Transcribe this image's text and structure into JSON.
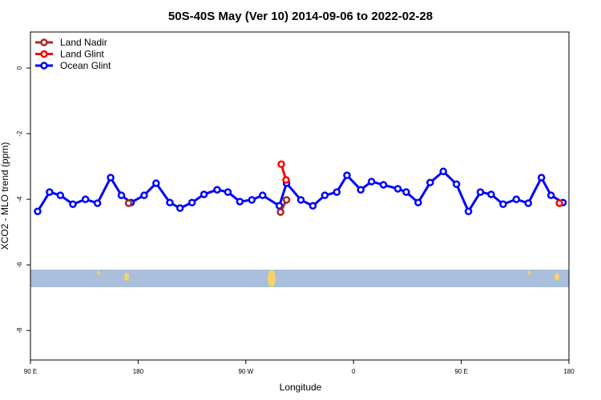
{
  "chart_data": {
    "type": "line",
    "title": "50S-40S May (Ver 10)   2014-09-06 to 2022-02-28",
    "x_label": "Longitude",
    "y_label": "XCO2 - MLO trend (ppm)",
    "xlim": [
      90,
      540
    ],
    "ylim": [
      -8.9,
      1.1
    ],
    "xticks": [
      {
        "value": 90,
        "label": "90 E"
      },
      {
        "value": 180,
        "label": "180"
      },
      {
        "value": 270,
        "label": "90 W"
      },
      {
        "value": 360,
        "label": "0"
      },
      {
        "value": 450,
        "label": "90 E"
      },
      {
        "value": 540,
        "label": "180"
      }
    ],
    "yticks": [
      0,
      -2,
      -4,
      -6,
      -8
    ],
    "legend": "top-left",
    "series": [
      {
        "name": "Land Nadir",
        "color": "#a52a2a",
        "x": [
          172,
          null,
          299,
          304
        ],
        "values": [
          -4.12,
          null,
          -4.39,
          -4.02
        ]
      },
      {
        "name": "Land Glint",
        "color": "#ff0000",
        "x": [
          299.6,
          303.6,
          null,
          532
        ],
        "values": [
          -2.93,
          -3.41,
          null,
          -4.12
        ]
      },
      {
        "name": "Ocean Glint",
        "color": "#0000ff",
        "x": [
          96,
          106,
          115,
          125.5,
          136,
          146,
          157,
          166,
          174,
          185,
          195,
          206.5,
          215,
          225,
          235,
          246,
          255,
          265,
          275,
          284,
          298,
          304,
          316,
          326,
          336,
          346,
          354.5,
          366,
          375,
          385,
          397,
          404,
          414,
          424,
          435,
          446,
          456,
          466,
          475,
          485,
          496,
          506,
          517,
          525,
          535
        ],
        "values": [
          -4.37,
          -3.78,
          -3.88,
          -4.15,
          -4.0,
          -4.12,
          -3.34,
          -3.88,
          -4.1,
          -3.88,
          -3.51,
          -4.1,
          -4.27,
          -4.1,
          -3.85,
          -3.71,
          -3.78,
          -4.07,
          -4.02,
          -3.88,
          -4.2,
          -3.51,
          -4.02,
          -4.2,
          -3.88,
          -3.78,
          -3.27,
          -3.71,
          -3.46,
          -3.56,
          -3.68,
          -3.78,
          -4.1,
          -3.49,
          -3.15,
          -3.54,
          -4.37,
          -3.78,
          -3.85,
          -4.15,
          -4.0,
          -4.12,
          -3.34,
          -3.88,
          -4.1
        ]
      }
    ]
  }
}
